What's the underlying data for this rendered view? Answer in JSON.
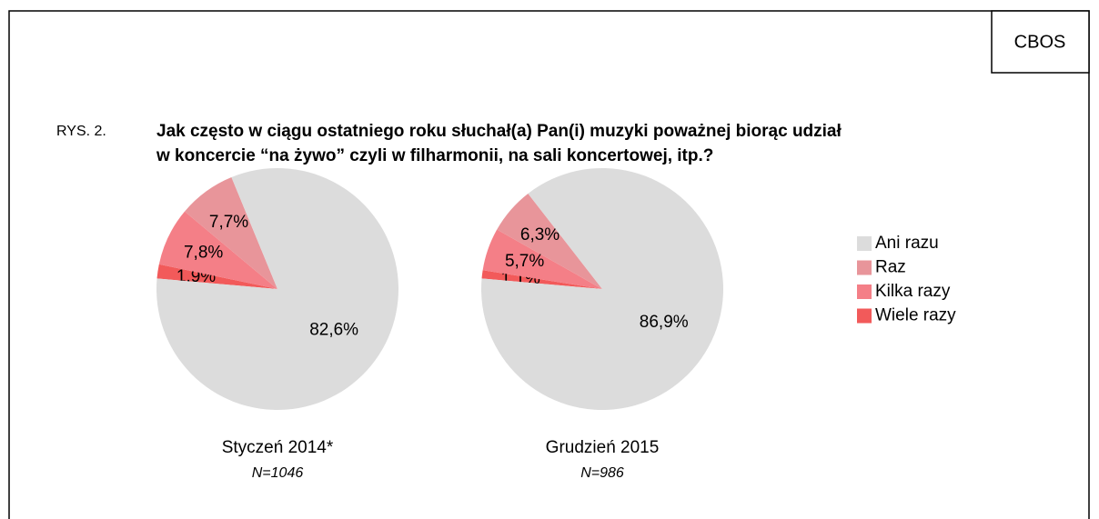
{
  "header": {
    "source": "CBOS",
    "figure": "RYS. 2.",
    "title_lines": [
      "Jak często w ciągu ostatniego roku słuchał(a) Pan(i) muzyki poważnej biorąc udział",
      "w koncercie “na żywo” czyli w filharmonii, na sali koncertowej, itp.?"
    ]
  },
  "legend": {
    "labels": [
      "Ani razu",
      "Raz",
      "Kilka razy",
      "Wiele razy"
    ],
    "colors": [
      "#dcdcdc",
      "#e8959a",
      "#f47f87",
      "#f25a5a"
    ]
  },
  "chart_data": [
    {
      "type": "pie",
      "title": "Styczeń 2014*",
      "subtitle": "N=1046",
      "values": [
        82.6,
        7.7,
        7.8,
        1.9
      ],
      "value_labels": [
        "82,6%",
        "7,7%",
        "7,8%",
        "1,9%"
      ]
    },
    {
      "type": "pie",
      "title": "Grudzień 2015",
      "subtitle": "N=986",
      "values": [
        86.9,
        6.3,
        5.7,
        1.1
      ],
      "value_labels": [
        "86,9%",
        "6,3%",
        "5,7%",
        "1,1%"
      ]
    }
  ]
}
